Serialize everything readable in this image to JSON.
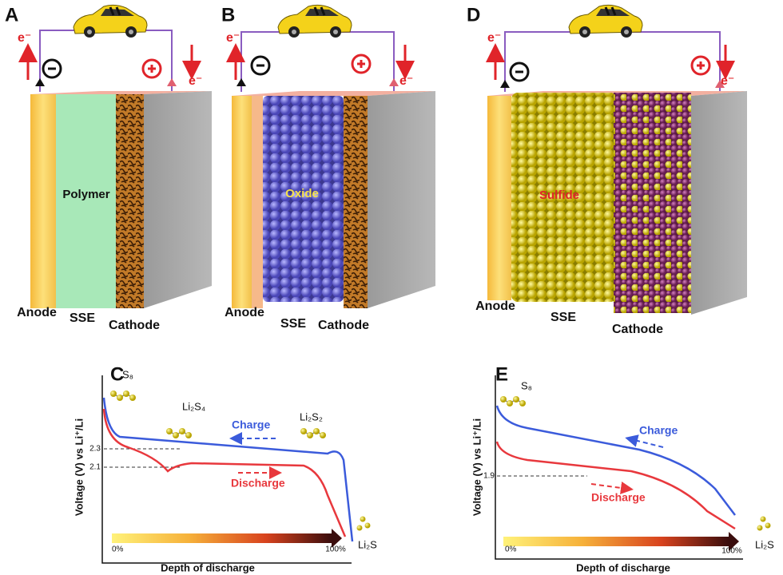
{
  "panels": [
    {
      "letter": "A",
      "material": "Polymer",
      "electron_left": "e⁻",
      "electron_right": "e⁻",
      "layers": [
        "Anode",
        "SSE",
        "Cathode"
      ]
    },
    {
      "letter": "B",
      "material": "Oxide",
      "electron_left": "e⁻",
      "electron_right": "e⁻",
      "layers": [
        "Anode",
        "SSE",
        "Cathode"
      ]
    },
    {
      "letter": "D",
      "material": "Sulfide",
      "electron_left": "e⁻",
      "electron_right": "e⁻",
      "layers": [
        "Anode",
        "SSE",
        "Cathode"
      ]
    }
  ],
  "voltage_panels": [
    {
      "letter": "C",
      "y_axis_label": "Voltage (V) vs Li⁺/Li",
      "x_axis_label": "Depth of discharge",
      "ticks": [
        2.3,
        2.1
      ],
      "start_label": "0%",
      "end_label": "100%",
      "species": [
        "S₈",
        "Li₂S₄",
        "Li₂S₂",
        "Li₂S"
      ],
      "charge_label": "Charge",
      "discharge_label": "Discharge"
    },
    {
      "letter": "E",
      "y_axis_label": "Voltage (V) vs Li⁺/Li",
      "x_axis_label": "Depth of discharge",
      "ticks": [
        1.9
      ],
      "start_label": "0%",
      "end_label": "100%",
      "species": [
        "S₈",
        "Li₂S"
      ],
      "charge_label": "Charge",
      "discharge_label": "Discharge"
    }
  ]
}
